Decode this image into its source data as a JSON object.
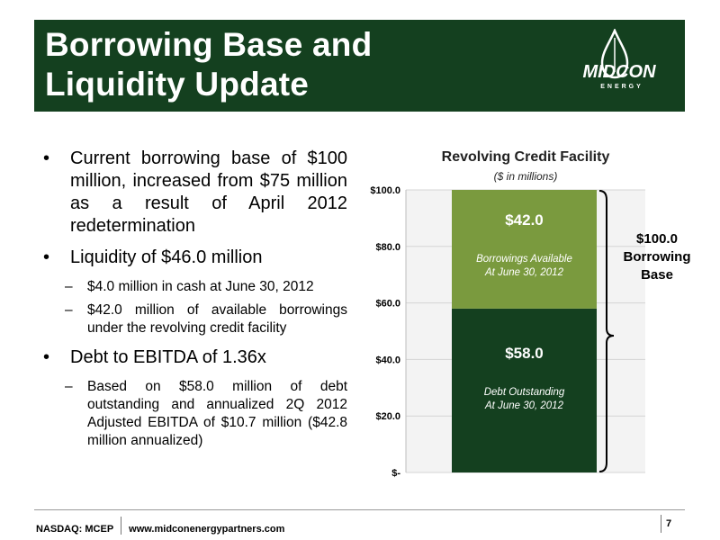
{
  "header": {
    "title_line1": "Borrowing Base and",
    "title_line2": "Liquidity Update",
    "logo_text_main": "MIDCON",
    "logo_text_sub": "ENERGY"
  },
  "bullets": [
    {
      "marker": "•",
      "text": "Current borrowing base of $100 million, increased from $75 million as a result of April 2012 redetermination"
    },
    {
      "marker": "•",
      "text": "Liquidity of $46.0 million"
    },
    {
      "marker": "–",
      "text": "$4.0 million in cash at June 30, 2012"
    },
    {
      "marker": "–",
      "text": "$42.0 million of available borrowings under the revolving credit facility"
    },
    {
      "marker": "•",
      "text": "Debt to EBITDA of 1.36x"
    },
    {
      "marker": "–",
      "text": "Based on $58.0 million of debt outstanding and annualized 2Q 2012 Adjusted EBITDA of $10.7 million ($42.8 million annualized)"
    }
  ],
  "chart_data": {
    "type": "bar",
    "stacked": true,
    "title": "Revolving Credit Facility",
    "subtitle": "($ in millions)",
    "ylim": [
      0,
      100
    ],
    "yticks": [
      "$-",
      "$20.0",
      "$40.0",
      "$60.0",
      "$80.0",
      "$100.0"
    ],
    "series": [
      {
        "value": 58.0,
        "value_label": "$58.0",
        "label_line1": "Debt Outstanding",
        "label_line2": "At June 30, 2012",
        "color": "#14401f"
      },
      {
        "value": 42.0,
        "value_label": "$42.0",
        "label_line1": "Borrowings Available",
        "label_line2": "At June 30, 2012",
        "color": "#7a9a3e"
      }
    ],
    "annotation": {
      "line1": "$100.0",
      "line2": "Borrowing",
      "line3": "Base"
    },
    "colors": {
      "grid": "#d4d4d4",
      "plot_bg": "#f3f3f3"
    }
  },
  "footer": {
    "ticker": "NASDAQ: MCEP",
    "website": "www.midconenergypartners.com",
    "page_number": "7"
  }
}
